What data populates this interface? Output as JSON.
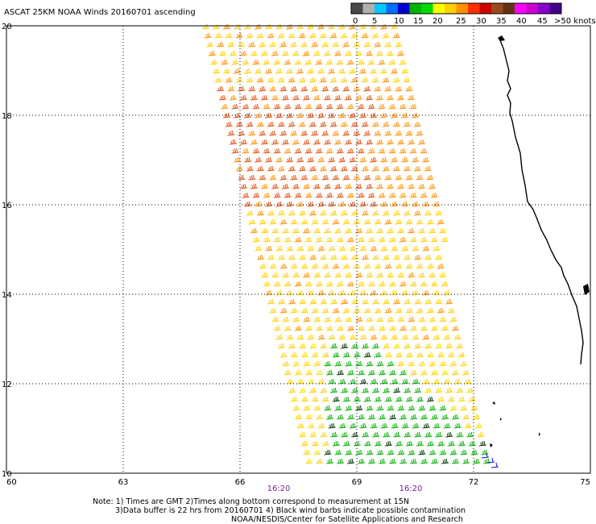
{
  "title": "ASCAT 25KM NOAA Winds 20160701 ascending",
  "legend": {
    "colors": [
      "#4a4a4a",
      "#b0b0b0",
      "#00c8ff",
      "#0070ff",
      "#0000d0",
      "#00b400",
      "#00dc00",
      "#ffff00",
      "#ffd000",
      "#ff9000",
      "#ff3000",
      "#d00000",
      "#9a4a20",
      "#663311",
      "#ff00ff",
      "#cc00cc",
      "#8800cc",
      "#440088"
    ],
    "labels": [
      "0",
      "5",
      "10",
      "15",
      "20",
      "25",
      "30",
      "35",
      "40",
      "45",
      ">50 knots"
    ]
  },
  "map": {
    "lon_range": [
      60,
      75
    ],
    "lat_range": [
      10,
      20
    ],
    "x_ticks": [
      "60",
      "63",
      "66",
      "69",
      "72",
      "75"
    ],
    "y_ticks": [
      "20",
      "18",
      "16",
      "14",
      "12",
      "10"
    ],
    "grid": true,
    "times": [
      "16:20",
      "16:20"
    ],
    "time_color": "#7a1f9a"
  },
  "notes": [
    "Note: 1) Times are GMT 2)Times along bottom correspond to measurement at 15N",
    "3)Data buffer is 22 hrs from 20160701 4) Black wind barbs indicate possible contamination",
    "NOAA/NESDIS/Center for Satellite Applications and Research"
  ],
  "colors": {
    "warm": "#ffd000",
    "orange": "#ff9000",
    "red_orange": "#e05010",
    "yellow": "#f0e000",
    "green": "#00b000",
    "dark": "#003300",
    "blue": "#1010d0"
  }
}
